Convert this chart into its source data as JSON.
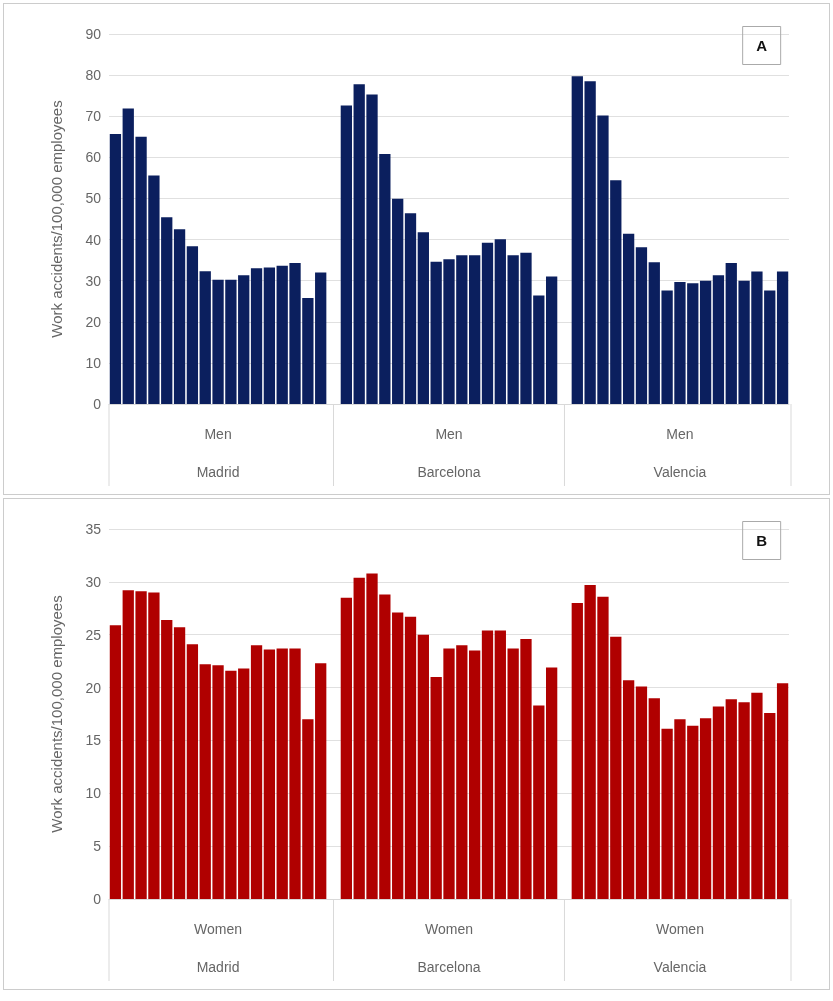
{
  "chart_data": [
    {
      "type": "bar",
      "title": "A",
      "ylabel": "Work accidents/100,000 employees",
      "categories": [
        null,
        null,
        null,
        null,
        null,
        null,
        null,
        null,
        null,
        null,
        null,
        null,
        null,
        null,
        null,
        null,
        null,
        null,
        null,
        null,
        null,
        null,
        null,
        null,
        null,
        null,
        null,
        null,
        null,
        null,
        null,
        null,
        null,
        null,
        null,
        null,
        null,
        null,
        null,
        null,
        null,
        null,
        null,
        null,
        null,
        null,
        null,
        null,
        null,
        null,
        null,
        null,
        null
      ],
      "values": [
        65.7,
        71.9,
        65.0,
        55.6,
        45.4,
        42.5,
        38.4,
        32.3,
        30.2,
        30.2,
        31.3,
        33.0,
        33.2,
        33.6,
        34.3,
        25.8,
        32.0,
        null,
        72.6,
        77.8,
        75.3,
        60.8,
        49.9,
        46.4,
        41.8,
        34.6,
        35.2,
        36.2,
        36.2,
        39.2,
        40.1,
        36.2,
        36.8,
        26.4,
        31.0,
        null,
        79.7,
        78.5,
        70.2,
        54.4,
        41.4,
        38.1,
        34.5,
        27.6,
        29.7,
        29.4,
        30.0,
        31.3,
        34.3,
        30.0,
        32.2,
        27.6,
        32.2
      ],
      "color": "#0b1f5e",
      "ylim": [
        0,
        90
      ],
      "yticks": [
        0,
        10,
        20,
        30,
        40,
        50,
        60,
        70,
        80,
        90
      ],
      "grid": "y",
      "annotations": [
        "Men",
        "Madrid",
        "Men",
        "Barcelona",
        "Men",
        "Valencia"
      ]
    },
    {
      "type": "bar",
      "title": "B",
      "ylabel": "Work accidents/100,000 employees",
      "categories": [
        null,
        null,
        null,
        null,
        null,
        null,
        null,
        null,
        null,
        null,
        null,
        null,
        null,
        null,
        null,
        null,
        null,
        null,
        null,
        null,
        null,
        null,
        null,
        null,
        null,
        null,
        null,
        null,
        null,
        null,
        null,
        null,
        null,
        null,
        null,
        null,
        null,
        null,
        null,
        null,
        null,
        null,
        null,
        null,
        null,
        null,
        null,
        null,
        null,
        null,
        null,
        null,
        null
      ],
      "values": [
        25.9,
        29.2,
        29.1,
        29.0,
        26.4,
        25.7,
        24.1,
        22.2,
        22.1,
        21.6,
        21.8,
        24.0,
        23.6,
        23.7,
        23.7,
        17.0,
        22.3,
        null,
        28.5,
        30.4,
        30.8,
        28.8,
        27.1,
        26.7,
        25.0,
        21.0,
        23.7,
        24.0,
        23.5,
        25.4,
        25.4,
        23.7,
        24.6,
        18.3,
        21.9,
        null,
        28.0,
        29.7,
        28.6,
        24.8,
        20.7,
        20.1,
        19.0,
        16.1,
        17.0,
        16.4,
        17.1,
        18.2,
        18.9,
        18.6,
        19.5,
        17.6,
        20.4
      ],
      "color": "#b00000",
      "ylim": [
        0,
        35
      ],
      "yticks": [
        0,
        5,
        10,
        15,
        20,
        25,
        30,
        35
      ],
      "grid": "y",
      "annotations": [
        "Women",
        "Madrid",
        "Women",
        "Barcelona",
        "Women",
        "Valencia"
      ]
    }
  ]
}
